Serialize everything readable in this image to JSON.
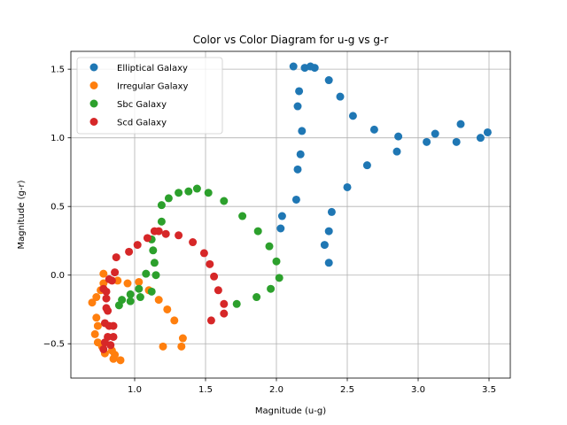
{
  "chart_data": {
    "type": "scatter",
    "title": "Color vs Color Diagram for u-g vs g-r",
    "xlabel": "Magnitude (u-g)",
    "ylabel": "Magnitude (g-r)",
    "xlim": [
      0.55,
      3.65
    ],
    "ylim": [
      -0.75,
      1.63
    ],
    "xticks": [
      1.0,
      1.5,
      2.0,
      2.5,
      3.0,
      3.5
    ],
    "xtick_labels": [
      "1.0",
      "1.5",
      "2.0",
      "2.5",
      "3.0",
      "3.5"
    ],
    "yticks": [
      -0.5,
      0.0,
      0.5,
      1.0,
      1.5
    ],
    "ytick_labels": [
      "−0.5",
      "0.0",
      "0.5",
      "1.0",
      "1.5"
    ],
    "grid": true,
    "legend_position": "top-left",
    "series": [
      {
        "name": "Elliptical Galaxy",
        "color": "#1f77b4",
        "points": [
          [
            2.12,
            1.52
          ],
          [
            2.2,
            1.51
          ],
          [
            2.24,
            1.52
          ],
          [
            2.27,
            1.51
          ],
          [
            2.37,
            1.42
          ],
          [
            2.45,
            1.3
          ],
          [
            2.16,
            1.34
          ],
          [
            2.15,
            1.23
          ],
          [
            2.54,
            1.16
          ],
          [
            2.18,
            1.05
          ],
          [
            2.69,
            1.06
          ],
          [
            2.86,
            1.01
          ],
          [
            3.12,
            1.03
          ],
          [
            3.3,
            1.1
          ],
          [
            3.49,
            1.04
          ],
          [
            3.44,
            1.0
          ],
          [
            3.27,
            0.97
          ],
          [
            3.06,
            0.97
          ],
          [
            2.85,
            0.9
          ],
          [
            2.17,
            0.88
          ],
          [
            2.64,
            0.8
          ],
          [
            2.15,
            0.77
          ],
          [
            2.5,
            0.64
          ],
          [
            2.14,
            0.55
          ],
          [
            2.39,
            0.46
          ],
          [
            2.04,
            0.43
          ],
          [
            2.03,
            0.34
          ],
          [
            2.37,
            0.32
          ],
          [
            2.34,
            0.22
          ],
          [
            2.37,
            0.09
          ]
        ]
      },
      {
        "name": "Irregular Galaxy",
        "color": "#ff7f0e",
        "points": [
          [
            0.78,
            0.01
          ],
          [
            0.78,
            -0.06
          ],
          [
            0.76,
            -0.11
          ],
          [
            0.73,
            -0.16
          ],
          [
            0.7,
            -0.2
          ],
          [
            0.73,
            -0.31
          ],
          [
            0.74,
            -0.37
          ],
          [
            0.72,
            -0.43
          ],
          [
            0.74,
            -0.49
          ],
          [
            0.77,
            -0.52
          ],
          [
            0.79,
            -0.57
          ],
          [
            0.84,
            -0.55
          ],
          [
            0.85,
            -0.61
          ],
          [
            0.9,
            -0.62
          ],
          [
            0.86,
            -0.58
          ],
          [
            0.88,
            -0.04
          ],
          [
            0.95,
            -0.06
          ],
          [
            1.03,
            -0.05
          ],
          [
            1.1,
            -0.11
          ],
          [
            1.17,
            -0.18
          ],
          [
            1.23,
            -0.25
          ],
          [
            1.28,
            -0.33
          ],
          [
            1.34,
            -0.46
          ],
          [
            1.33,
            -0.52
          ],
          [
            1.2,
            -0.52
          ]
        ]
      },
      {
        "name": "Sbc Galaxy",
        "color": "#2ca02c",
        "points": [
          [
            1.44,
            0.63
          ],
          [
            1.38,
            0.61
          ],
          [
            1.31,
            0.6
          ],
          [
            1.24,
            0.56
          ],
          [
            1.52,
            0.6
          ],
          [
            1.63,
            0.54
          ],
          [
            1.19,
            0.51
          ],
          [
            1.76,
            0.43
          ],
          [
            1.19,
            0.39
          ],
          [
            1.12,
            0.26
          ],
          [
            1.87,
            0.32
          ],
          [
            1.95,
            0.21
          ],
          [
            1.13,
            0.18
          ],
          [
            1.14,
            0.09
          ],
          [
            2.0,
            0.1
          ],
          [
            2.02,
            -0.02
          ],
          [
            1.15,
            0.0
          ],
          [
            1.08,
            0.01
          ],
          [
            1.96,
            -0.1
          ],
          [
            1.03,
            -0.1
          ],
          [
            1.12,
            -0.12
          ],
          [
            0.97,
            -0.14
          ],
          [
            1.04,
            -0.16
          ],
          [
            1.86,
            -0.16
          ],
          [
            0.91,
            -0.18
          ],
          [
            0.97,
            -0.19
          ],
          [
            0.89,
            -0.22
          ],
          [
            1.72,
            -0.21
          ]
        ]
      },
      {
        "name": "Scd Galaxy",
        "color": "#d62728",
        "points": [
          [
            1.14,
            0.32
          ],
          [
            1.17,
            0.32
          ],
          [
            1.22,
            0.3
          ],
          [
            1.31,
            0.29
          ],
          [
            1.09,
            0.27
          ],
          [
            1.41,
            0.24
          ],
          [
            1.02,
            0.22
          ],
          [
            0.96,
            0.17
          ],
          [
            1.49,
            0.16
          ],
          [
            0.87,
            0.13
          ],
          [
            1.53,
            0.08
          ],
          [
            0.86,
            0.02
          ],
          [
            1.56,
            -0.01
          ],
          [
            0.82,
            -0.03
          ],
          [
            0.84,
            -0.04
          ],
          [
            0.78,
            -0.1
          ],
          [
            0.8,
            -0.12
          ],
          [
            1.59,
            -0.11
          ],
          [
            0.8,
            -0.17
          ],
          [
            1.63,
            -0.21
          ],
          [
            0.8,
            -0.24
          ],
          [
            0.81,
            -0.26
          ],
          [
            1.63,
            -0.28
          ],
          [
            1.54,
            -0.33
          ],
          [
            0.79,
            -0.35
          ],
          [
            0.82,
            -0.37
          ],
          [
            0.85,
            -0.37
          ],
          [
            0.81,
            -0.45
          ],
          [
            0.85,
            -0.45
          ],
          [
            0.79,
            -0.49
          ],
          [
            0.83,
            -0.51
          ],
          [
            0.78,
            -0.54
          ]
        ]
      }
    ]
  }
}
